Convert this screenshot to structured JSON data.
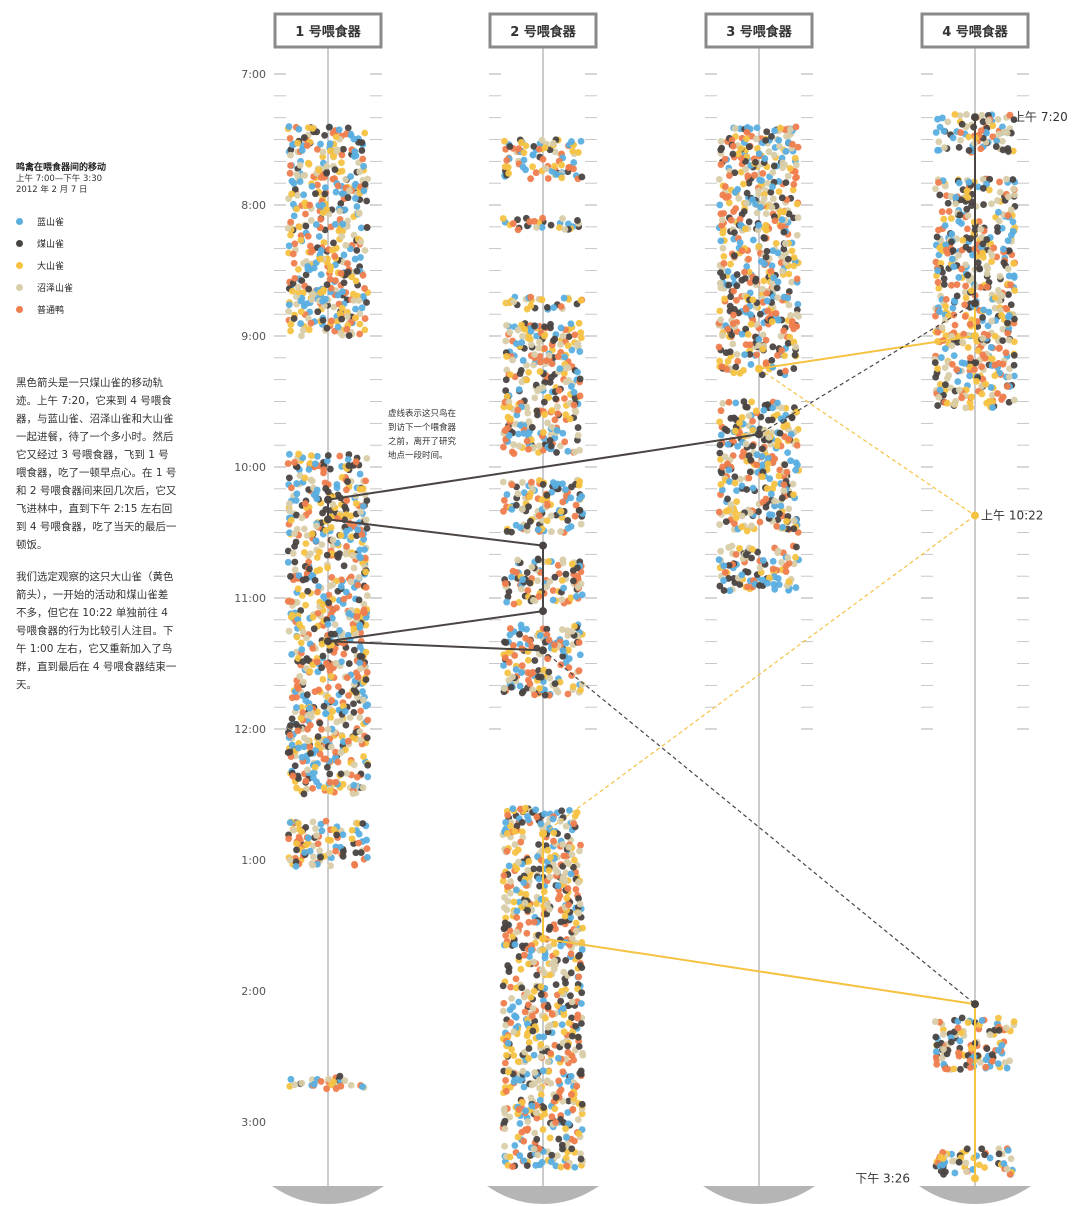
{
  "legend": {
    "title": "鸣禽在喂食器间的移动",
    "subtitle": "上午 7:00—下午 3:30",
    "date": "2012 年 2 月 7 日",
    "items": [
      {
        "label": "蓝山雀",
        "color": "#5aaee0"
      },
      {
        "label": "煤山雀",
        "color": "#4a4542"
      },
      {
        "label": "大山雀",
        "color": "#f5c242"
      },
      {
        "label": "沼泽山雀",
        "color": "#d9ceaa"
      },
      {
        "label": "普通鸭",
        "color": "#ef7d4d"
      }
    ]
  },
  "story": {
    "paragraph1": "黑色箭头是一只煤山雀的移动轨迹。上午 7:20，它来到 4 号喂食器，与蓝山雀、沼泽山雀和大山雀一起进餐，待了一个多小时。然后它又经过 3 号喂食器，飞到 1 号喂食器，吃了一顿早点心。在 1 号和 2 号喂食器间来回几次后，它又飞进林中，直到下午 2:15 左右回到 4 号喂食器，吃了当天的最后一顿饭。",
    "paragraph2": "我们选定观察的这只大山雀（黄色箭头），一开始的活动和煤山雀差不多，但它在 10:22 单独前往 4 号喂食器的行为比较引人注目。下午 1:00 左右，它又重新加入了鸟群，直到最后在 4 号喂食器结束一天。"
  },
  "chart_data": {
    "type": "scatter",
    "time_ticks": [
      "7:00",
      "8:00",
      "9:00",
      "10:00",
      "11:00",
      "12:00",
      "1:00",
      "2:00",
      "3:00"
    ],
    "feeders": [
      {
        "name": "1 号喂食器",
        "visits": [
          [
            7.4,
            9.0
          ],
          [
            9.9,
            10.6
          ],
          [
            10.6,
            11.3
          ],
          [
            11.3,
            12.5
          ],
          [
            12.7,
            13.05
          ],
          [
            14.65,
            14.75
          ]
        ]
      },
      {
        "name": "2 号喂食器",
        "visits": [
          [
            7.5,
            7.8
          ],
          [
            8.1,
            8.2
          ],
          [
            8.7,
            8.8
          ],
          [
            8.9,
            9.9
          ],
          [
            10.1,
            10.5
          ],
          [
            10.7,
            11.05
          ],
          [
            11.2,
            11.75
          ],
          [
            12.6,
            12.9
          ],
          [
            12.9,
            14.0
          ],
          [
            14.0,
            14.55
          ],
          [
            14.6,
            15.35
          ]
        ]
      },
      {
        "name": "3 号喂食器",
        "visits": [
          [
            7.4,
            8.7
          ],
          [
            8.7,
            9.3
          ],
          [
            9.5,
            10.5
          ],
          [
            10.6,
            10.95
          ]
        ]
      },
      {
        "name": "4 号喂食器",
        "visits": [
          [
            7.3,
            7.6
          ],
          [
            7.8,
            8.8
          ],
          [
            8.8,
            9.3
          ],
          [
            9.3,
            9.55
          ],
          [
            14.2,
            14.6
          ],
          [
            15.2,
            15.4
          ]
        ]
      }
    ],
    "blue_tit_path": {
      "label": "煤山雀",
      "stops": [
        {
          "feeder": 4,
          "time": 7.33
        },
        {
          "feeder": 4,
          "time": 8.75
        },
        {
          "feeder": 3,
          "time": 9.75
        },
        {
          "feeder": 1,
          "time": 10.25
        },
        {
          "feeder": 1,
          "time": 10.4
        },
        {
          "feeder": 2,
          "time": 10.6
        },
        {
          "feeder": 2,
          "time": 11.1
        },
        {
          "feeder": 1,
          "time": 11.33
        },
        {
          "feeder": 2,
          "time": 11.4
        },
        {
          "feeder": 4,
          "time": 14.1
        }
      ]
    },
    "great_tit_path": {
      "label": "大山雀",
      "stops": [
        {
          "feeder": 4,
          "time": 7.33
        },
        {
          "feeder": 4,
          "time": 9.0
        },
        {
          "feeder": 3,
          "time": 9.25
        },
        {
          "feeder": 4,
          "time": 10.37
        },
        {
          "feeder": 2,
          "time": 12.8
        },
        {
          "feeder": 2,
          "time": 13.6
        },
        {
          "feeder": 4,
          "time": 14.1
        },
        {
          "feeder": 4,
          "time": 15.43
        }
      ]
    },
    "annotations": {
      "start": "上午 7:20",
      "leave": "上午 10:22",
      "end": "下午 3:26",
      "note_line1": "虚线表示这只鸟在",
      "note_line2": "到访下一个喂食器",
      "note_line3": "之前，离开了研究",
      "note_line4": "地点一段时间。"
    },
    "xlabel": "",
    "ylabel": "",
    "ylim": [
      "7:00",
      "3:30"
    ]
  }
}
